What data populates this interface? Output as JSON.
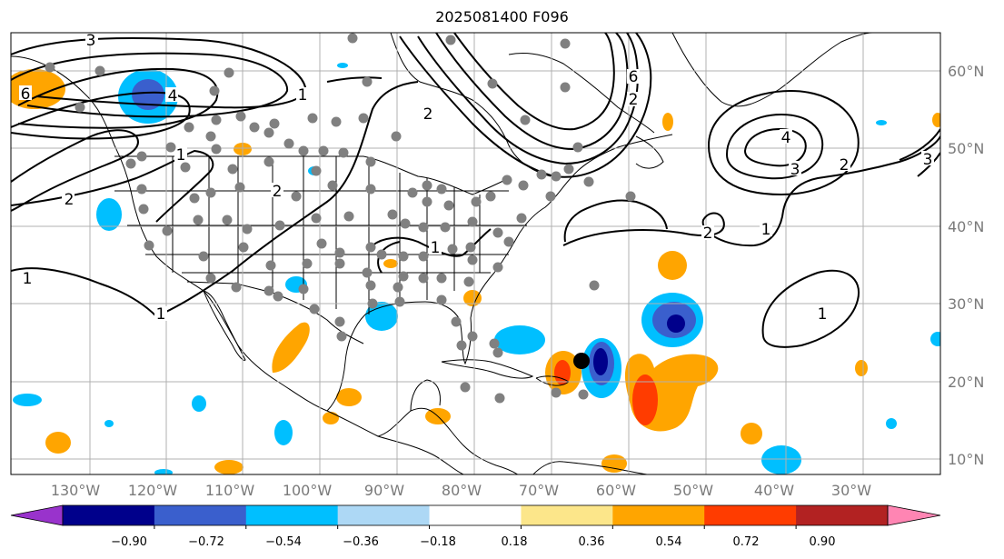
{
  "title": "2025081400 F096",
  "longitude_labels": [
    "130°W",
    "120°W",
    "110°W",
    "100°W",
    "90°W",
    "80°W",
    "70°W",
    "60°W",
    "50°W",
    "40°W",
    "30°W"
  ],
  "latitude_labels": [
    "60°N",
    "50°N",
    "40°N",
    "30°N",
    "20°N",
    "10°N"
  ],
  "contour_labels": [
    "3",
    "6",
    "4",
    "2",
    "2",
    "1",
    "2",
    "2",
    "6",
    "3",
    "4",
    "3",
    "2",
    "2",
    "1",
    "1",
    "1",
    "1",
    "1",
    "1"
  ],
  "colorbar": {
    "tick_labels": [
      "−0.90",
      "−0.72",
      "−0.54",
      "−0.36",
      "−0.18",
      "0.18",
      "0.36",
      "0.54",
      "0.72",
      "0.90"
    ],
    "colors": [
      "#9933cc",
      "#00008b",
      "#3a5fcd",
      "#00bfff",
      "#add8f5",
      "#ffffff",
      "#fce68a",
      "#ffa500",
      "#ff3c00",
      "#b22222",
      "#ff85b3"
    ]
  },
  "markers": {
    "point_color": "#808080",
    "storm_color": "#000000"
  }
}
